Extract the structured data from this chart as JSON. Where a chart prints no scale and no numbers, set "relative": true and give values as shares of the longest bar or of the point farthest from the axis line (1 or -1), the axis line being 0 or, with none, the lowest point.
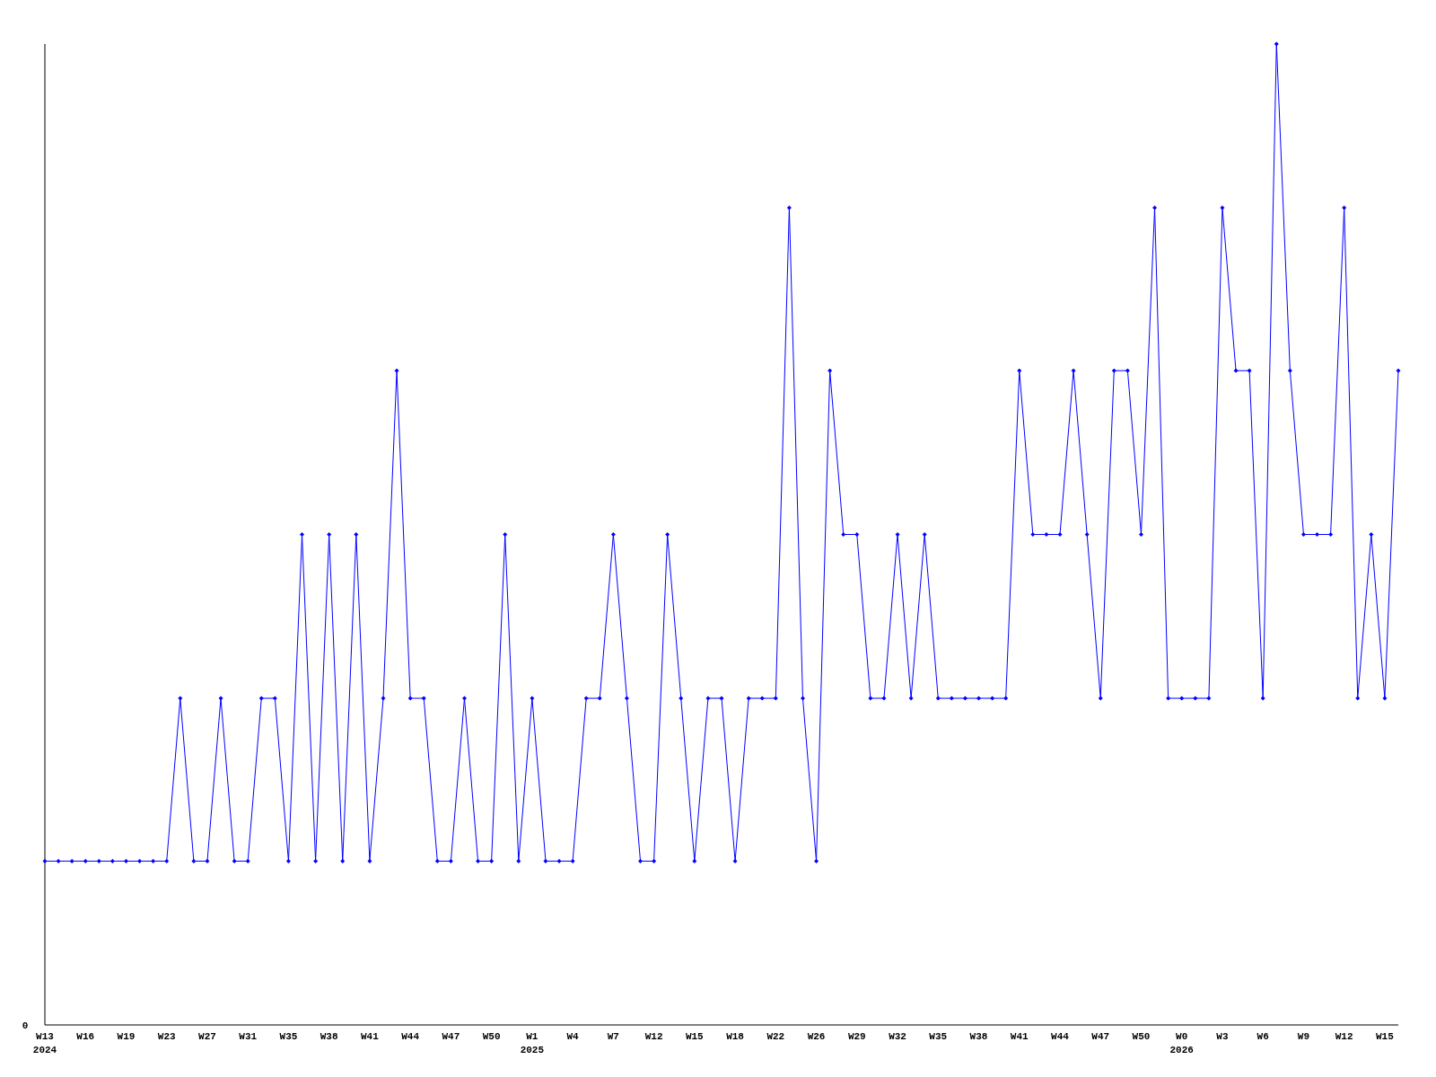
{
  "chart_data": {
    "type": "line",
    "relative": true,
    "annotations": [
      "0"
    ],
    "marker": "diamond",
    "line_style": "solid",
    "categories": [
      "W13\n2024",
      null,
      null,
      "W16",
      null,
      null,
      "W19",
      null,
      null,
      "W23",
      null,
      null,
      "W27",
      null,
      null,
      "W31",
      null,
      null,
      "W35",
      null,
      null,
      "W38",
      null,
      null,
      "W41",
      null,
      null,
      "W44",
      null,
      null,
      "W47",
      null,
      null,
      "W50",
      null,
      null,
      "W1\n2025",
      null,
      null,
      "W4",
      null,
      null,
      "W7",
      null,
      null,
      "W12",
      null,
      null,
      "W15",
      null,
      null,
      "W18",
      null,
      null,
      "W22",
      null,
      null,
      "W26",
      null,
      null,
      "W29",
      null,
      null,
      "W32",
      null,
      null,
      "W35",
      null,
      null,
      "W38",
      null,
      null,
      "W41",
      null,
      null,
      "W44",
      null,
      null,
      "W47",
      null,
      null,
      "W50",
      null,
      null,
      "W0\n2026",
      null,
      null,
      "W3",
      null,
      null,
      "W6",
      null,
      null,
      "W9",
      null,
      null,
      "W12",
      null,
      null,
      "W15",
      null
    ],
    "series": [
      {
        "color": "#0000ff",
        "values": [
          0.167,
          0.167,
          0.167,
          0.167,
          0.167,
          0.167,
          0.167,
          0.167,
          0.167,
          0.167,
          0.333,
          0.167,
          0.167,
          0.333,
          0.167,
          0.167,
          0.333,
          0.333,
          0.167,
          0.5,
          0.167,
          0.5,
          0.167,
          0.5,
          0.167,
          0.333,
          0.667,
          0.333,
          0.333,
          0.167,
          0.167,
          0.333,
          0.167,
          0.167,
          0.5,
          0.167,
          0.333,
          0.167,
          0.167,
          0.167,
          0.333,
          0.333,
          0.5,
          0.333,
          0.167,
          0.167,
          0.5,
          0.333,
          0.167,
          0.333,
          0.333,
          0.167,
          0.333,
          0.333,
          0.333,
          0.833,
          0.333,
          0.167,
          0.667,
          0.5,
          0.5,
          0.333,
          0.333,
          0.5,
          0.333,
          0.5,
          0.333,
          0.333,
          0.333,
          0.333,
          0.333,
          0.333,
          0.667,
          0.5,
          0.5,
          0.5,
          0.667,
          0.5,
          0.333,
          0.667,
          0.667,
          0.5,
          0.833,
          0.333,
          0.333,
          0.333,
          0.333,
          0.833,
          0.667,
          0.667,
          0.333,
          1,
          0.667,
          0.5,
          0.5,
          0.5,
          0.833,
          0.333,
          0.5,
          0.333,
          0.667
        ]
      }
    ]
  }
}
